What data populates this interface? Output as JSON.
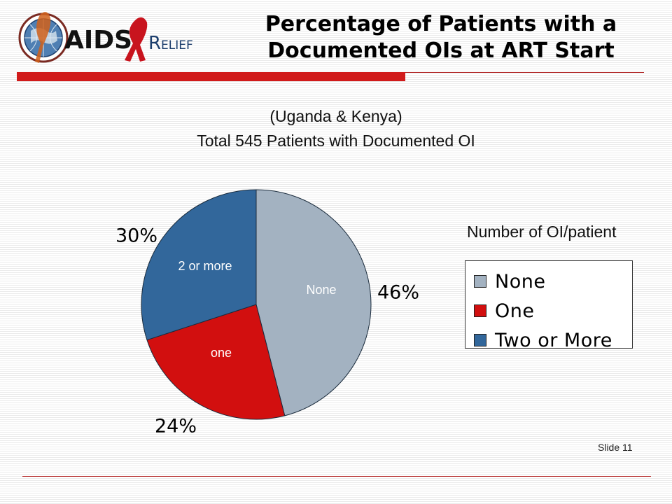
{
  "header": {
    "title_line1": "Percentage of Patients with a",
    "title_line2": "Documented OIs at ART Start",
    "logo_text": "AIDS RELIEF"
  },
  "subtitle": {
    "line1": "(Uganda & Kenya)",
    "line2": "Total 545 Patients with Documented OI"
  },
  "footer": {
    "slide_label": "Slide  11"
  },
  "colors": {
    "none": "#a3b2c1",
    "one": "#d20f0f",
    "two_or_more": "#32679b",
    "accent_red": "#d11b1b"
  },
  "chart_data": {
    "type": "pie",
    "legend_title": "Number of OI/patient",
    "legend_position": "right",
    "slices": [
      {
        "legend": "None",
        "inner_label": "None",
        "percent_label": "46%",
        "value": 46,
        "color": "#a3b2c1"
      },
      {
        "legend": "One",
        "inner_label": "one",
        "percent_label": "24%",
        "value": 24,
        "color": "#d20f0f"
      },
      {
        "legend": "Two or More",
        "inner_label": "2 or more",
        "percent_label": "30%",
        "value": 30,
        "color": "#32679b"
      }
    ]
  }
}
